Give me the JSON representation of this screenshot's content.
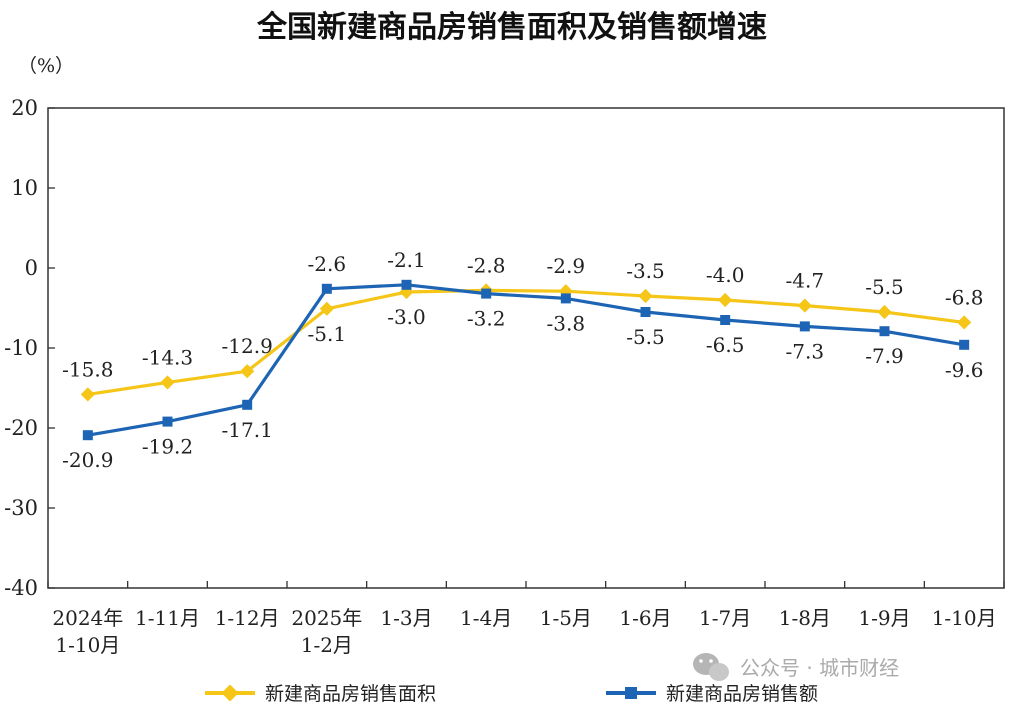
{
  "chart_data": {
    "type": "line",
    "title": "全国新建商品房销售面积及销售额增速",
    "unit_label": "（%）",
    "ylim": [
      -40,
      20
    ],
    "yticks": [
      "20",
      "10",
      "0",
      "-10",
      "-20",
      "-30",
      "-40"
    ],
    "categories": [
      [
        "2024年",
        "1-10月"
      ],
      [
        "1-11月"
      ],
      [
        "1-12月"
      ],
      [
        "2025年",
        "1-2月"
      ],
      [
        "1-3月"
      ],
      [
        "1-4月"
      ],
      [
        "1-5月"
      ],
      [
        "1-6月"
      ],
      [
        "1-7月"
      ],
      [
        "1-8月"
      ],
      [
        "1-9月"
      ],
      [
        "1-10月"
      ]
    ],
    "series": [
      {
        "name": "新建商品房销售面积",
        "color": "#F5C518",
        "values": [
          -15.8,
          -14.3,
          -12.9,
          -5.1,
          -3.0,
          -2.8,
          -2.9,
          -3.5,
          -4.0,
          -4.7,
          -5.5,
          -6.8
        ],
        "labels": [
          "-15.8",
          "-14.3",
          "-12.9",
          "-5.1",
          "-3.0",
          "-2.8",
          "-2.9",
          "-3.5",
          "-4.0",
          "-4.7",
          "-5.5",
          "-6.8"
        ]
      },
      {
        "name": "新建商品房销售额",
        "color": "#1E64B4",
        "values": [
          -20.9,
          -19.2,
          -17.1,
          -2.6,
          -2.1,
          -3.2,
          -3.8,
          -5.5,
          -6.5,
          -7.3,
          -7.9,
          -9.6
        ],
        "labels": [
          "-20.9",
          "-19.2",
          "-17.1",
          "-2.6",
          "-2.1",
          "-3.2",
          "-3.8",
          "-5.5",
          "-6.5",
          "-7.3",
          "-7.9",
          "-9.6"
        ]
      }
    ],
    "grid": false,
    "legend_position": "bottom"
  },
  "watermark": {
    "text": "公众号 · 城市财经"
  }
}
